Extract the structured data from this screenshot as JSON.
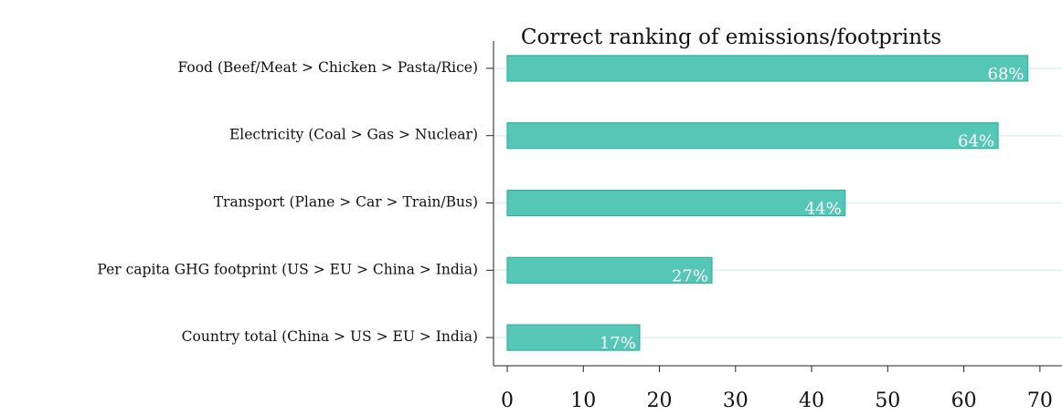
{
  "chart_data": {
    "type": "barh",
    "title": "Correct ranking of emissions/footprints",
    "categories": [
      "Food (Beef/Meat > Chicken > Pasta/Rice)",
      "Electricity (Coal > Gas > Nuclear)",
      "Transport (Plane > Car > Train/Bus)",
      "Per capita GHG footprint (US > EU > China > India)",
      "Country total (China > US > EU > India)"
    ],
    "values": [
      68.4,
      64.5,
      44.4,
      26.9,
      17.4
    ],
    "value_labels": [
      "68%",
      "64%",
      "44%",
      "27%",
      "17%"
    ],
    "color": "#56c6b7",
    "xlim": [
      -1.8,
      72.9
    ],
    "xticks": [
      0,
      10,
      20,
      30,
      40,
      50,
      60,
      70
    ],
    "grid": true
  }
}
